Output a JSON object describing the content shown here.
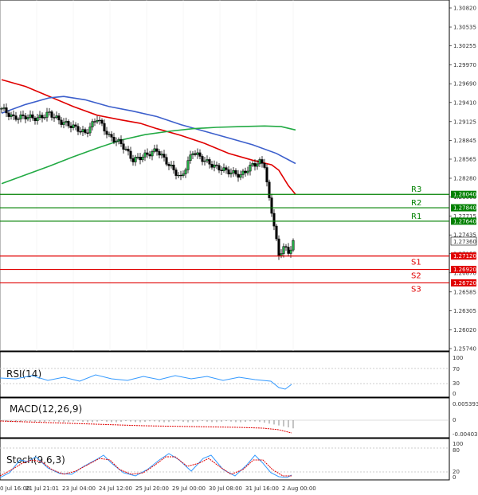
{
  "chart_data": {
    "type": "candlestick",
    "price_axis_ticks": [
      "1.30820",
      "1.30535",
      "1.30255",
      "1.29970",
      "1.29690",
      "1.29410",
      "1.29125",
      "1.28845",
      "1.28565",
      "1.28280",
      "1.28000",
      "1.27715",
      "1.27435",
      "1.27155",
      "1.26870",
      "1.26585",
      "1.26305",
      "1.26020",
      "1.25740"
    ],
    "current_price": "1.27360",
    "levels": [
      {
        "name": "R3",
        "value": "1.28040",
        "color": "#008000"
      },
      {
        "name": "R2",
        "value": "1.27840",
        "color": "#008000"
      },
      {
        "name": "R1",
        "value": "1.27640",
        "color": "#008000"
      },
      {
        "name": "S1",
        "value": "1.27120",
        "color": "#e00000"
      },
      {
        "name": "S2",
        "value": "1.26920",
        "color": "#e00000"
      },
      {
        "name": "S3",
        "value": "1.26720",
        "color": "#e00000"
      }
    ],
    "x_labels": [
      "0 Jul 16:00",
      "21 Jul 21:01",
      "23 Jul 04:00",
      "24 Jul 12:00",
      "25 Jul 20:00",
      "29 Jul 00:00",
      "30 Jul 08:00",
      "31 Jul 16:00",
      "2 Aug 00:00"
    ],
    "moving_averages": [
      {
        "color": "#e00000",
        "points": [
          [
            0,
            1.2975
          ],
          [
            10,
            1.2965
          ],
          [
            20,
            1.295
          ],
          [
            30,
            1.2935
          ],
          [
            40,
            1.2922
          ],
          [
            50,
            1.2915
          ],
          [
            58,
            1.291
          ],
          [
            65,
            1.2902
          ],
          [
            75,
            1.2892
          ],
          [
            85,
            1.288
          ],
          [
            95,
            1.2865
          ],
          [
            105,
            1.2855
          ],
          [
            113,
            1.2848
          ],
          [
            116,
            1.284
          ],
          [
            120,
            1.2817
          ],
          [
            123,
            1.2804
          ]
        ]
      },
      {
        "color": "#3c5fcc",
        "points": [
          [
            0,
            1.2925
          ],
          [
            10,
            1.2938
          ],
          [
            20,
            1.2948
          ],
          [
            26,
            1.295
          ],
          [
            35,
            1.2945
          ],
          [
            45,
            1.2935
          ],
          [
            55,
            1.2928
          ],
          [
            65,
            1.292
          ],
          [
            75,
            1.2908
          ],
          [
            85,
            1.2898
          ],
          [
            95,
            1.2888
          ],
          [
            105,
            1.2878
          ],
          [
            115,
            1.2865
          ],
          [
            123,
            1.285
          ]
        ]
      },
      {
        "color": "#22aa44",
        "points": [
          [
            0,
            1.282
          ],
          [
            10,
            1.2833
          ],
          [
            20,
            1.2846
          ],
          [
            30,
            1.286
          ],
          [
            40,
            1.2873
          ],
          [
            50,
            1.2885
          ],
          [
            60,
            1.2893
          ],
          [
            70,
            1.2898
          ],
          [
            80,
            1.2902
          ],
          [
            90,
            1.2904
          ],
          [
            100,
            1.2905
          ],
          [
            110,
            1.2906
          ],
          [
            117,
            1.2905
          ],
          [
            123,
            1.29
          ]
        ]
      }
    ],
    "indicators": [
      {
        "label": "RSI(14)",
        "ticks": [
          "100",
          "70",
          "30",
          "0"
        ]
      },
      {
        "label": "MACD(12,26,9)",
        "ticks": [
          "0.005393",
          "0",
          "-0.004031"
        ]
      },
      {
        "label": "Stoch(9,6,3)",
        "ticks": [
          "100",
          "80",
          "20",
          "0"
        ]
      }
    ]
  }
}
